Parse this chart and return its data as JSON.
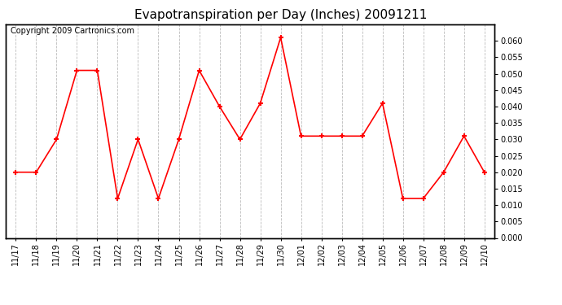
{
  "title": "Evapotranspiration per Day (Inches) 20091211",
  "copyright": "Copyright 2009 Cartronics.com",
  "x_labels": [
    "11/17",
    "11/18",
    "11/19",
    "11/20",
    "11/21",
    "11/22",
    "11/23",
    "11/24",
    "11/25",
    "11/26",
    "11/27",
    "11/28",
    "11/29",
    "11/30",
    "12/01",
    "12/02",
    "12/03",
    "12/04",
    "12/05",
    "12/06",
    "12/07",
    "12/08",
    "12/09",
    "12/10"
  ],
  "y_values": [
    0.02,
    0.02,
    0.03,
    0.051,
    0.051,
    0.012,
    0.03,
    0.012,
    0.03,
    0.051,
    0.04,
    0.03,
    0.041,
    0.061,
    0.031,
    0.031,
    0.031,
    0.031,
    0.041,
    0.012,
    0.012,
    0.02,
    0.031,
    0.02
  ],
  "line_color": "#ff0000",
  "marker": "+",
  "marker_size": 5,
  "marker_linewidth": 1.5,
  "ylim": [
    0.0,
    0.065
  ],
  "ytick_min": 0.0,
  "ytick_max": 0.06,
  "ytick_step": 0.005,
  "grid_color": "#bbbbbb",
  "grid_linestyle": "--",
  "bg_color": "#ffffff",
  "title_fontsize": 11,
  "copyright_fontsize": 7,
  "tick_fontsize": 7,
  "border_color": "#000000",
  "linewidth": 1.2
}
